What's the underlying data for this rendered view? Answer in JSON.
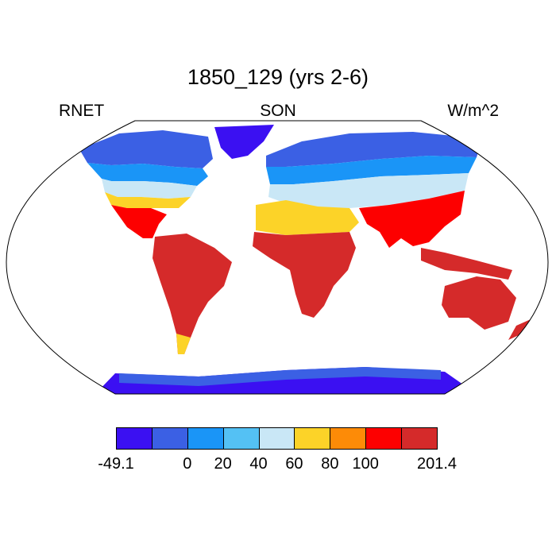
{
  "title": "1850_129 (yrs 2-6)",
  "left_label": "RNET",
  "center_label": "SON",
  "right_label": "W/m^2",
  "colorbar": {
    "colors": [
      "#3b10f2",
      "#3b60e4",
      "#1a95f7",
      "#54c1f4",
      "#c9e7f6",
      "#fcd328",
      "#fd8b07",
      "#fd0000",
      "#d52a2a"
    ],
    "tick_labels": [
      "-49.1",
      "0",
      "20",
      "40",
      "60",
      "80",
      "100",
      "201.4"
    ],
    "tick_boundaries": [
      0,
      2,
      3,
      4,
      5,
      6,
      7,
      9
    ]
  },
  "map": {
    "projection": "Robinson",
    "variable": "RNET",
    "season": "SON",
    "units": "W/m^2"
  }
}
